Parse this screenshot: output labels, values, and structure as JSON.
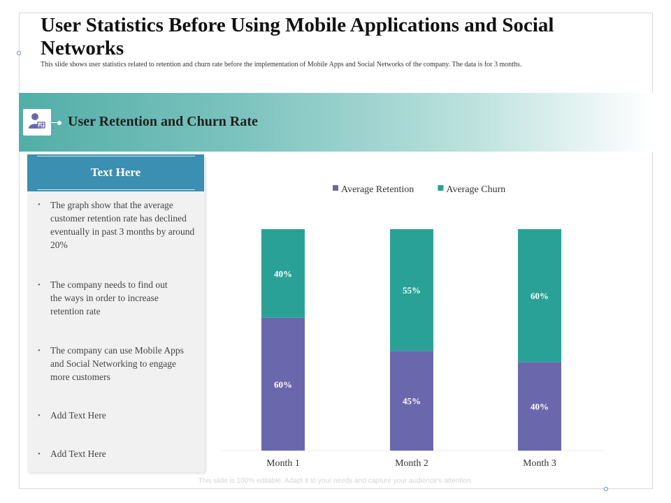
{
  "title": "User Statistics Before Using Mobile Applications and Social Networks",
  "subtitle": "This slide shows user statistics related to retention and churn rate before the implementation of Mobile Apps and Social Networks of the company. The data is for 3 months.",
  "banner": {
    "title": "User Retention and Churn Rate",
    "icon": "user-sync-icon"
  },
  "panel": {
    "header": "Text Here",
    "bullets": [
      "The graph show that the average customer retention rate has declined eventually in past 3 months by around 20%",
      "The company needs to find out the ways in order to increase retention rate",
      "The company can use Mobile Apps and Social Networking to engage more customers",
      "Add Text Here",
      "Add Text Here"
    ]
  },
  "footer": "This slide is 100% editable. Adapt it to your needs and capture your audience's attention.",
  "colors": {
    "retention": "#6b67ad",
    "churn": "#2aa197",
    "banner": "#52aea8",
    "panel_header": "#3b8fb0"
  },
  "chart_data": {
    "type": "bar",
    "stacked": true,
    "categories": [
      "Month 1",
      "Month 2",
      "Month 3"
    ],
    "series": [
      {
        "name": "Average Retention",
        "values": [
          60,
          45,
          40
        ],
        "labels": [
          "60%",
          "45%",
          "40%"
        ]
      },
      {
        "name": "Average Churn",
        "values": [
          40,
          55,
          60
        ],
        "labels": [
          "40%",
          "55%",
          "60%"
        ]
      }
    ],
    "ylim": [
      0,
      100
    ],
    "legend": "top",
    "grid": false,
    "title": "",
    "xlabel": "",
    "ylabel": ""
  }
}
